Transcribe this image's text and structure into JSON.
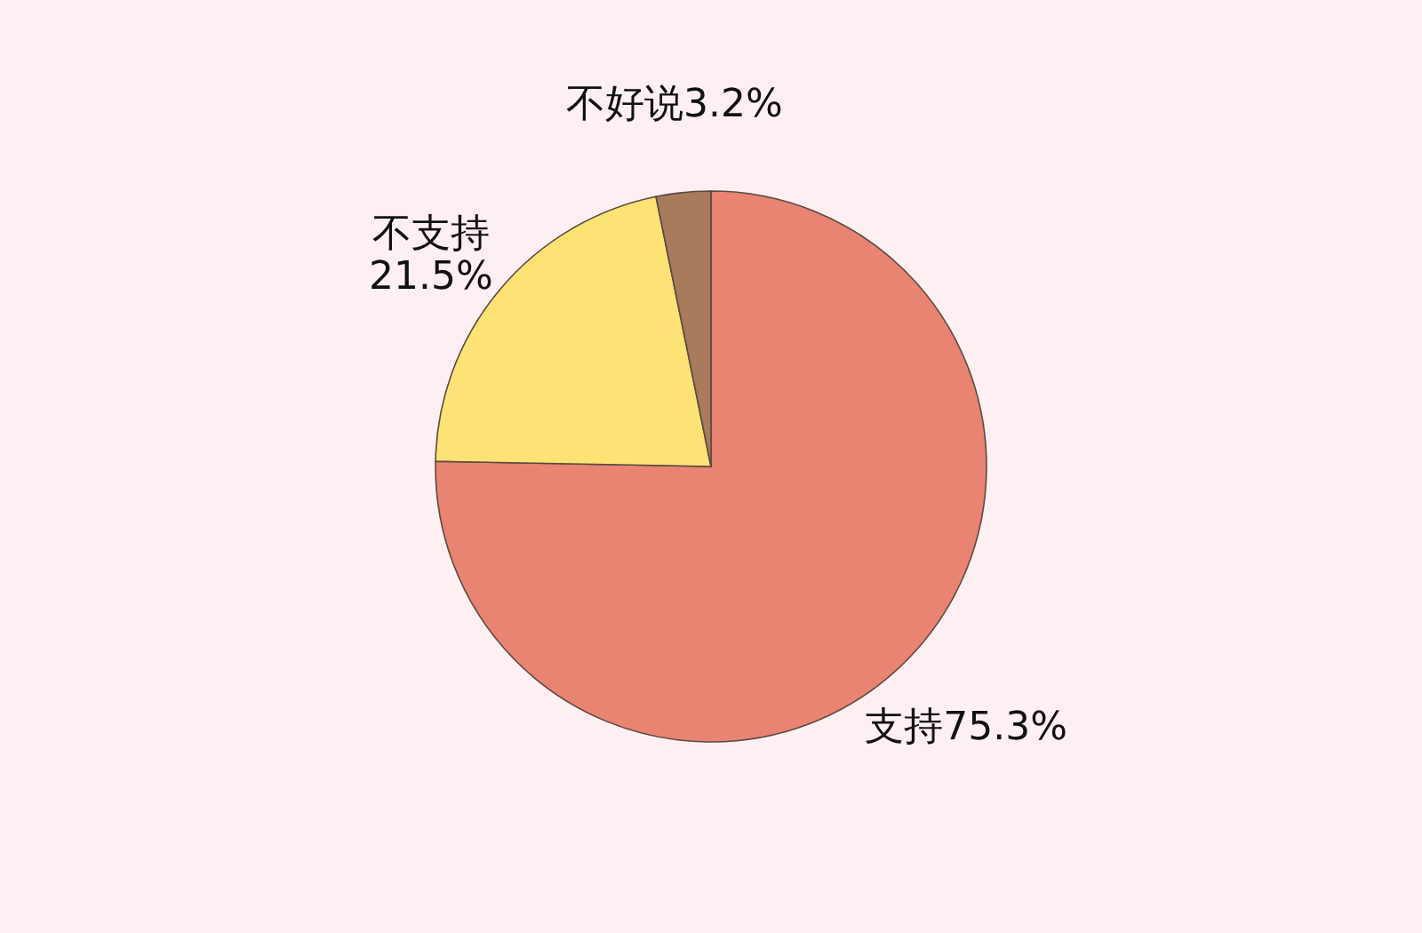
{
  "chart_data": {
    "type": "pie",
    "categories": [
      "支持",
      "不支持",
      "不好说"
    ],
    "values": [
      75.3,
      21.5,
      3.2
    ],
    "colors": [
      "#e98372",
      "#fde275",
      "#a87b5c"
    ],
    "value_labels": [
      "75.3%",
      "21.5%",
      "3.2%"
    ],
    "legend": false
  }
}
